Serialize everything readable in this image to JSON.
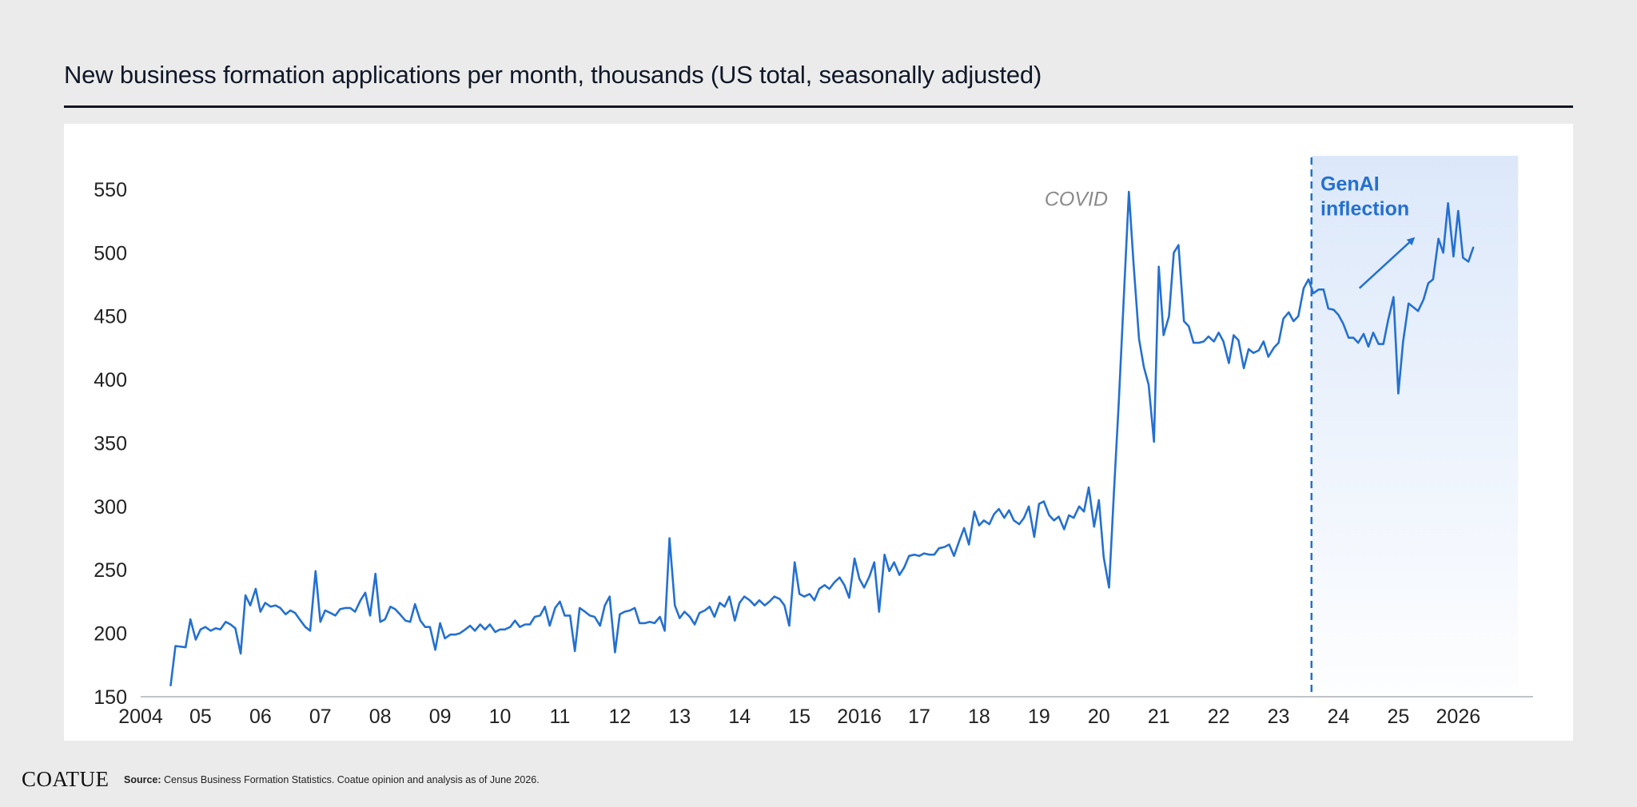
{
  "chart_data": {
    "type": "line",
    "title": "New business formation applications per month, thousands (US total, seasonally adjusted)",
    "ylim": [
      150,
      560
    ],
    "xlim": [
      2004.0,
      2027.25
    ],
    "y_ticks": [
      150,
      200,
      250,
      300,
      350,
      400,
      450,
      500,
      550
    ],
    "x_ticks": [
      {
        "value": 2004,
        "label": "2004"
      },
      {
        "value": 2005,
        "label": "05"
      },
      {
        "value": 2006,
        "label": "06"
      },
      {
        "value": 2007,
        "label": "07"
      },
      {
        "value": 2008,
        "label": "08"
      },
      {
        "value": 2009,
        "label": "09"
      },
      {
        "value": 2010,
        "label": "10"
      },
      {
        "value": 2011,
        "label": "11"
      },
      {
        "value": 2012,
        "label": "12"
      },
      {
        "value": 2013,
        "label": "13"
      },
      {
        "value": 2014,
        "label": "14"
      },
      {
        "value": 2015,
        "label": "15"
      },
      {
        "value": 2016,
        "label": "2016"
      },
      {
        "value": 2017,
        "label": "17"
      },
      {
        "value": 2018,
        "label": "18"
      },
      {
        "value": 2019,
        "label": "19"
      },
      {
        "value": 2020,
        "label": "20"
      },
      {
        "value": 2021,
        "label": "21"
      },
      {
        "value": 2022,
        "label": "22"
      },
      {
        "value": 2023,
        "label": "23"
      },
      {
        "value": 2024,
        "label": "24"
      },
      {
        "value": 2025,
        "label": "25"
      },
      {
        "value": 2026,
        "label": "2026"
      }
    ],
    "grid": false,
    "series": [
      {
        "color": "#2470d0",
        "points": [
          [
            2004.5,
            159
          ],
          [
            2004.58,
            190
          ],
          [
            2004.75,
            189
          ],
          [
            2004.83,
            211
          ],
          [
            2004.92,
            195
          ],
          [
            2005.0,
            203
          ],
          [
            2005.08,
            205
          ],
          [
            2005.17,
            202
          ],
          [
            2005.25,
            204
          ],
          [
            2005.33,
            203
          ],
          [
            2005.42,
            209
          ],
          [
            2005.5,
            207
          ],
          [
            2005.58,
            204
          ],
          [
            2005.67,
            184
          ],
          [
            2005.75,
            230
          ],
          [
            2005.83,
            222
          ],
          [
            2005.92,
            235
          ],
          [
            2006.0,
            217
          ],
          [
            2006.08,
            224
          ],
          [
            2006.17,
            221
          ],
          [
            2006.25,
            222
          ],
          [
            2006.33,
            220
          ],
          [
            2006.42,
            215
          ],
          [
            2006.5,
            218
          ],
          [
            2006.58,
            216
          ],
          [
            2006.67,
            210
          ],
          [
            2006.75,
            205
          ],
          [
            2006.83,
            202
          ],
          [
            2006.92,
            249
          ],
          [
            2007.0,
            209
          ],
          [
            2007.08,
            218
          ],
          [
            2007.17,
            216
          ],
          [
            2007.25,
            214
          ],
          [
            2007.33,
            219
          ],
          [
            2007.42,
            220
          ],
          [
            2007.5,
            220
          ],
          [
            2007.58,
            217
          ],
          [
            2007.67,
            226
          ],
          [
            2007.75,
            232
          ],
          [
            2007.83,
            214
          ],
          [
            2007.92,
            247
          ],
          [
            2008.0,
            209
          ],
          [
            2008.08,
            211
          ],
          [
            2008.17,
            221
          ],
          [
            2008.25,
            219
          ],
          [
            2008.33,
            215
          ],
          [
            2008.42,
            210
          ],
          [
            2008.5,
            209
          ],
          [
            2008.58,
            223
          ],
          [
            2008.67,
            210
          ],
          [
            2008.75,
            205
          ],
          [
            2008.83,
            205
          ],
          [
            2008.92,
            187
          ],
          [
            2009.0,
            208
          ],
          [
            2009.08,
            196
          ],
          [
            2009.17,
            199
          ],
          [
            2009.25,
            199
          ],
          [
            2009.33,
            200
          ],
          [
            2009.42,
            203
          ],
          [
            2009.5,
            206
          ],
          [
            2009.58,
            202
          ],
          [
            2009.67,
            207
          ],
          [
            2009.75,
            203
          ],
          [
            2009.83,
            207
          ],
          [
            2009.92,
            201
          ],
          [
            2010.0,
            203
          ],
          [
            2010.08,
            203
          ],
          [
            2010.17,
            205
          ],
          [
            2010.25,
            210
          ],
          [
            2010.33,
            205
          ],
          [
            2010.42,
            207
          ],
          [
            2010.5,
            207
          ],
          [
            2010.58,
            213
          ],
          [
            2010.67,
            214
          ],
          [
            2010.75,
            221
          ],
          [
            2010.83,
            206
          ],
          [
            2010.92,
            220
          ],
          [
            2011.0,
            225
          ],
          [
            2011.08,
            214
          ],
          [
            2011.17,
            214
          ],
          [
            2011.25,
            186
          ],
          [
            2011.33,
            220
          ],
          [
            2011.42,
            217
          ],
          [
            2011.5,
            214
          ],
          [
            2011.58,
            213
          ],
          [
            2011.67,
            206
          ],
          [
            2011.75,
            222
          ],
          [
            2011.83,
            229
          ],
          [
            2011.92,
            185
          ],
          [
            2012.0,
            215
          ],
          [
            2012.08,
            217
          ],
          [
            2012.17,
            218
          ],
          [
            2012.25,
            220
          ],
          [
            2012.33,
            208
          ],
          [
            2012.42,
            208
          ],
          [
            2012.5,
            209
          ],
          [
            2012.58,
            208
          ],
          [
            2012.67,
            213
          ],
          [
            2012.75,
            202
          ],
          [
            2012.83,
            275
          ],
          [
            2012.92,
            222
          ],
          [
            2013.0,
            212
          ],
          [
            2013.08,
            217
          ],
          [
            2013.17,
            213
          ],
          [
            2013.25,
            207
          ],
          [
            2013.33,
            216
          ],
          [
            2013.42,
            218
          ],
          [
            2013.5,
            221
          ],
          [
            2013.58,
            213
          ],
          [
            2013.67,
            224
          ],
          [
            2013.75,
            221
          ],
          [
            2013.83,
            229
          ],
          [
            2013.92,
            210
          ],
          [
            2014.0,
            224
          ],
          [
            2014.08,
            229
          ],
          [
            2014.17,
            226
          ],
          [
            2014.25,
            222
          ],
          [
            2014.33,
            226
          ],
          [
            2014.42,
            222
          ],
          [
            2014.5,
            225
          ],
          [
            2014.58,
            229
          ],
          [
            2014.67,
            227
          ],
          [
            2014.75,
            222
          ],
          [
            2014.83,
            206
          ],
          [
            2014.92,
            256
          ],
          [
            2015.0,
            231
          ],
          [
            2015.08,
            229
          ],
          [
            2015.17,
            231
          ],
          [
            2015.25,
            226
          ],
          [
            2015.33,
            235
          ],
          [
            2015.42,
            238
          ],
          [
            2015.5,
            235
          ],
          [
            2015.58,
            240
          ],
          [
            2015.67,
            244
          ],
          [
            2015.75,
            238
          ],
          [
            2015.83,
            228
          ],
          [
            2015.92,
            259
          ],
          [
            2016.0,
            243
          ],
          [
            2016.08,
            236
          ],
          [
            2016.17,
            245
          ],
          [
            2016.25,
            256
          ],
          [
            2016.33,
            217
          ],
          [
            2016.42,
            262
          ],
          [
            2016.5,
            249
          ],
          [
            2016.58,
            256
          ],
          [
            2016.67,
            246
          ],
          [
            2016.75,
            252
          ],
          [
            2016.83,
            261
          ],
          [
            2016.92,
            262
          ],
          [
            2017.0,
            261
          ],
          [
            2017.08,
            263
          ],
          [
            2017.17,
            262
          ],
          [
            2017.25,
            262
          ],
          [
            2017.33,
            267
          ],
          [
            2017.42,
            268
          ],
          [
            2017.5,
            270
          ],
          [
            2017.58,
            261
          ],
          [
            2017.67,
            273
          ],
          [
            2017.75,
            283
          ],
          [
            2017.83,
            270
          ],
          [
            2017.92,
            296
          ],
          [
            2018.0,
            285
          ],
          [
            2018.08,
            289
          ],
          [
            2018.17,
            286
          ],
          [
            2018.25,
            294
          ],
          [
            2018.33,
            298
          ],
          [
            2018.42,
            291
          ],
          [
            2018.5,
            297
          ],
          [
            2018.58,
            289
          ],
          [
            2018.67,
            286
          ],
          [
            2018.75,
            291
          ],
          [
            2018.83,
            300
          ],
          [
            2018.92,
            276
          ],
          [
            2019.0,
            302
          ],
          [
            2019.08,
            304
          ],
          [
            2019.17,
            293
          ],
          [
            2019.25,
            289
          ],
          [
            2019.33,
            292
          ],
          [
            2019.42,
            282
          ],
          [
            2019.5,
            293
          ],
          [
            2019.58,
            291
          ],
          [
            2019.67,
            300
          ],
          [
            2019.75,
            296
          ],
          [
            2019.83,
            315
          ],
          [
            2019.92,
            284
          ],
          [
            2020.0,
            305
          ],
          [
            2020.08,
            260
          ],
          [
            2020.17,
            236
          ],
          [
            2020.25,
            310
          ],
          [
            2020.33,
            380
          ],
          [
            2020.5,
            548
          ],
          [
            2020.58,
            490
          ],
          [
            2020.67,
            432
          ],
          [
            2020.75,
            410
          ],
          [
            2020.83,
            396
          ],
          [
            2020.92,
            351
          ],
          [
            2021.0,
            489
          ],
          [
            2021.08,
            435
          ],
          [
            2021.17,
            450
          ],
          [
            2021.25,
            500
          ],
          [
            2021.33,
            506
          ],
          [
            2021.42,
            446
          ],
          [
            2021.5,
            442
          ],
          [
            2021.58,
            429
          ],
          [
            2021.67,
            429
          ],
          [
            2021.75,
            430
          ],
          [
            2021.83,
            434
          ],
          [
            2021.92,
            430
          ],
          [
            2022.0,
            437
          ],
          [
            2022.08,
            430
          ],
          [
            2022.17,
            413
          ],
          [
            2022.25,
            435
          ],
          [
            2022.33,
            431
          ],
          [
            2022.42,
            409
          ],
          [
            2022.5,
            424
          ],
          [
            2022.58,
            421
          ],
          [
            2022.67,
            423
          ],
          [
            2022.75,
            430
          ],
          [
            2022.83,
            418
          ],
          [
            2022.92,
            425
          ],
          [
            2023.0,
            429
          ],
          [
            2023.08,
            448
          ],
          [
            2023.17,
            453
          ],
          [
            2023.25,
            446
          ],
          [
            2023.33,
            450
          ],
          [
            2023.42,
            472
          ],
          [
            2023.5,
            479
          ],
          [
            2023.58,
            468
          ],
          [
            2023.67,
            471
          ],
          [
            2023.75,
            471
          ],
          [
            2023.83,
            456
          ],
          [
            2023.92,
            455
          ],
          [
            2024.0,
            451
          ],
          [
            2024.08,
            444
          ],
          [
            2024.17,
            433
          ],
          [
            2024.25,
            433
          ],
          [
            2024.33,
            429
          ],
          [
            2024.42,
            436
          ],
          [
            2024.5,
            426
          ],
          [
            2024.58,
            437
          ],
          [
            2024.67,
            428
          ],
          [
            2024.75,
            428
          ],
          [
            2024.83,
            447
          ],
          [
            2024.92,
            465
          ],
          [
            2025.0,
            389
          ],
          [
            2025.08,
            430
          ],
          [
            2025.17,
            460
          ],
          [
            2025.25,
            457
          ],
          [
            2025.33,
            454
          ],
          [
            2025.42,
            463
          ],
          [
            2025.5,
            476
          ],
          [
            2025.58,
            479
          ],
          [
            2025.67,
            511
          ],
          [
            2025.75,
            500
          ],
          [
            2025.83,
            539
          ],
          [
            2025.92,
            497
          ],
          [
            2026.0,
            533
          ],
          [
            2026.08,
            496
          ],
          [
            2026.17,
            493
          ],
          [
            2026.25,
            504
          ]
        ]
      }
    ],
    "annotations": [
      {
        "text": "COVID",
        "x": 2020.15,
        "y": 537,
        "color": "#8a8a8a"
      },
      {
        "text_lines": [
          "GenAI",
          "inflection"
        ],
        "x": 2023.7,
        "y": 549,
        "color": "#2470d0"
      }
    ],
    "genai_region": {
      "x_start": 2023.55,
      "x_end": 2027.0,
      "arrow": {
        "from": [
          2024.35,
          472
        ],
        "to": [
          2025.25,
          511
        ]
      }
    }
  },
  "footer": {
    "logo": "COATUE",
    "source_label": "Source:",
    "source_text": " Census Business Formation Statistics. Coatue opinion and analysis as of June 2026."
  }
}
